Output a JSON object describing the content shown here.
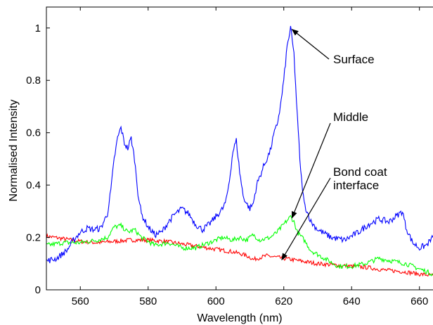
{
  "chart_data": {
    "type": "line",
    "title": "",
    "xlabel": "Wavelength (nm)",
    "ylabel": "Normalised Intensity",
    "xlim": [
      550,
      664
    ],
    "ylim": [
      0,
      1.08
    ],
    "xticks": [
      560,
      580,
      600,
      620,
      640,
      660
    ],
    "yticks": [
      0,
      0.2,
      0.4,
      0.6,
      0.8,
      1
    ],
    "ytick_labels": [
      "0",
      "0.2",
      "0.4",
      "0.6",
      "0.8",
      "1"
    ],
    "grid": false,
    "legend": "none",
    "series": [
      {
        "color": "#0000ff",
        "points": [
          [
            550,
            0.11
          ],
          [
            553,
            0.12
          ],
          [
            556,
            0.15
          ],
          [
            558,
            0.19
          ],
          [
            560,
            0.22
          ],
          [
            562,
            0.235
          ],
          [
            564,
            0.23
          ],
          [
            566,
            0.235
          ],
          [
            568,
            0.29
          ],
          [
            569,
            0.38
          ],
          [
            570,
            0.5
          ],
          [
            571,
            0.58
          ],
          [
            572,
            0.62
          ],
          [
            573,
            0.56
          ],
          [
            574,
            0.54
          ],
          [
            575,
            0.58
          ],
          [
            576,
            0.5
          ],
          [
            577,
            0.37
          ],
          [
            578,
            0.29
          ],
          [
            580,
            0.24
          ],
          [
            582,
            0.21
          ],
          [
            584,
            0.22
          ],
          [
            586,
            0.26
          ],
          [
            588,
            0.29
          ],
          [
            590,
            0.31
          ],
          [
            592,
            0.29
          ],
          [
            594,
            0.25
          ],
          [
            596,
            0.23
          ],
          [
            598,
            0.25
          ],
          [
            600,
            0.28
          ],
          [
            602,
            0.31
          ],
          [
            603,
            0.34
          ],
          [
            604,
            0.42
          ],
          [
            605,
            0.53
          ],
          [
            606,
            0.57
          ],
          [
            607,
            0.45
          ],
          [
            608,
            0.36
          ],
          [
            609,
            0.33
          ],
          [
            610,
            0.31
          ],
          [
            611,
            0.33
          ],
          [
            612,
            0.4
          ],
          [
            614,
            0.47
          ],
          [
            616,
            0.53
          ],
          [
            617,
            0.59
          ],
          [
            618,
            0.63
          ],
          [
            619,
            0.7
          ],
          [
            620,
            0.8
          ],
          [
            621,
            0.93
          ],
          [
            622,
            1.0
          ],
          [
            623,
            0.9
          ],
          [
            624,
            0.66
          ],
          [
            625,
            0.45
          ],
          [
            626,
            0.33
          ],
          [
            628,
            0.26
          ],
          [
            630,
            0.23
          ],
          [
            634,
            0.2
          ],
          [
            638,
            0.19
          ],
          [
            642,
            0.22
          ],
          [
            645,
            0.25
          ],
          [
            648,
            0.27
          ],
          [
            651,
            0.26
          ],
          [
            653,
            0.28
          ],
          [
            655,
            0.3
          ],
          [
            656,
            0.24
          ],
          [
            658,
            0.18
          ],
          [
            660,
            0.16
          ],
          [
            662,
            0.17
          ],
          [
            664,
            0.2
          ]
        ]
      },
      {
        "color": "#00ff00",
        "points": [
          [
            550,
            0.17
          ],
          [
            555,
            0.18
          ],
          [
            560,
            0.18
          ],
          [
            565,
            0.19
          ],
          [
            568,
            0.2
          ],
          [
            570,
            0.24
          ],
          [
            572,
            0.245
          ],
          [
            574,
            0.22
          ],
          [
            576,
            0.23
          ],
          [
            578,
            0.2
          ],
          [
            582,
            0.17
          ],
          [
            586,
            0.18
          ],
          [
            590,
            0.16
          ],
          [
            594,
            0.16
          ],
          [
            598,
            0.18
          ],
          [
            602,
            0.2
          ],
          [
            605,
            0.19
          ],
          [
            607,
            0.2
          ],
          [
            609,
            0.19
          ],
          [
            611,
            0.21
          ],
          [
            613,
            0.19
          ],
          [
            616,
            0.2
          ],
          [
            618,
            0.22
          ],
          [
            620,
            0.25
          ],
          [
            622,
            0.28
          ],
          [
            623,
            0.26
          ],
          [
            624,
            0.22
          ],
          [
            626,
            0.19
          ],
          [
            628,
            0.15
          ],
          [
            632,
            0.12
          ],
          [
            636,
            0.09
          ],
          [
            640,
            0.09
          ],
          [
            644,
            0.1
          ],
          [
            648,
            0.12
          ],
          [
            652,
            0.11
          ],
          [
            656,
            0.1
          ],
          [
            660,
            0.08
          ],
          [
            664,
            0.06
          ]
        ]
      },
      {
        "color": "#ff0000",
        "points": [
          [
            550,
            0.205
          ],
          [
            555,
            0.195
          ],
          [
            560,
            0.185
          ],
          [
            565,
            0.18
          ],
          [
            570,
            0.185
          ],
          [
            575,
            0.19
          ],
          [
            580,
            0.19
          ],
          [
            585,
            0.185
          ],
          [
            590,
            0.175
          ],
          [
            595,
            0.165
          ],
          [
            600,
            0.155
          ],
          [
            605,
            0.145
          ],
          [
            608,
            0.135
          ],
          [
            610,
            0.125
          ],
          [
            611,
            0.115
          ],
          [
            612,
            0.12
          ],
          [
            615,
            0.13
          ],
          [
            620,
            0.12
          ],
          [
            625,
            0.11
          ],
          [
            630,
            0.1
          ],
          [
            635,
            0.095
          ],
          [
            640,
            0.09
          ],
          [
            645,
            0.085
          ],
          [
            650,
            0.075
          ],
          [
            655,
            0.07
          ],
          [
            660,
            0.06
          ],
          [
            664,
            0.055
          ]
        ]
      }
    ],
    "annotations": [
      {
        "lines": [
          "Surface"
        ],
        "arrow_to": [
          622,
          1.0
        ]
      },
      {
        "lines": [
          "Middle"
        ],
        "arrow_to": [
          622,
          0.28
        ]
      },
      {
        "lines": [
          "Bond coat",
          "interface"
        ],
        "arrow_to": [
          619,
          0.12
        ]
      }
    ]
  }
}
